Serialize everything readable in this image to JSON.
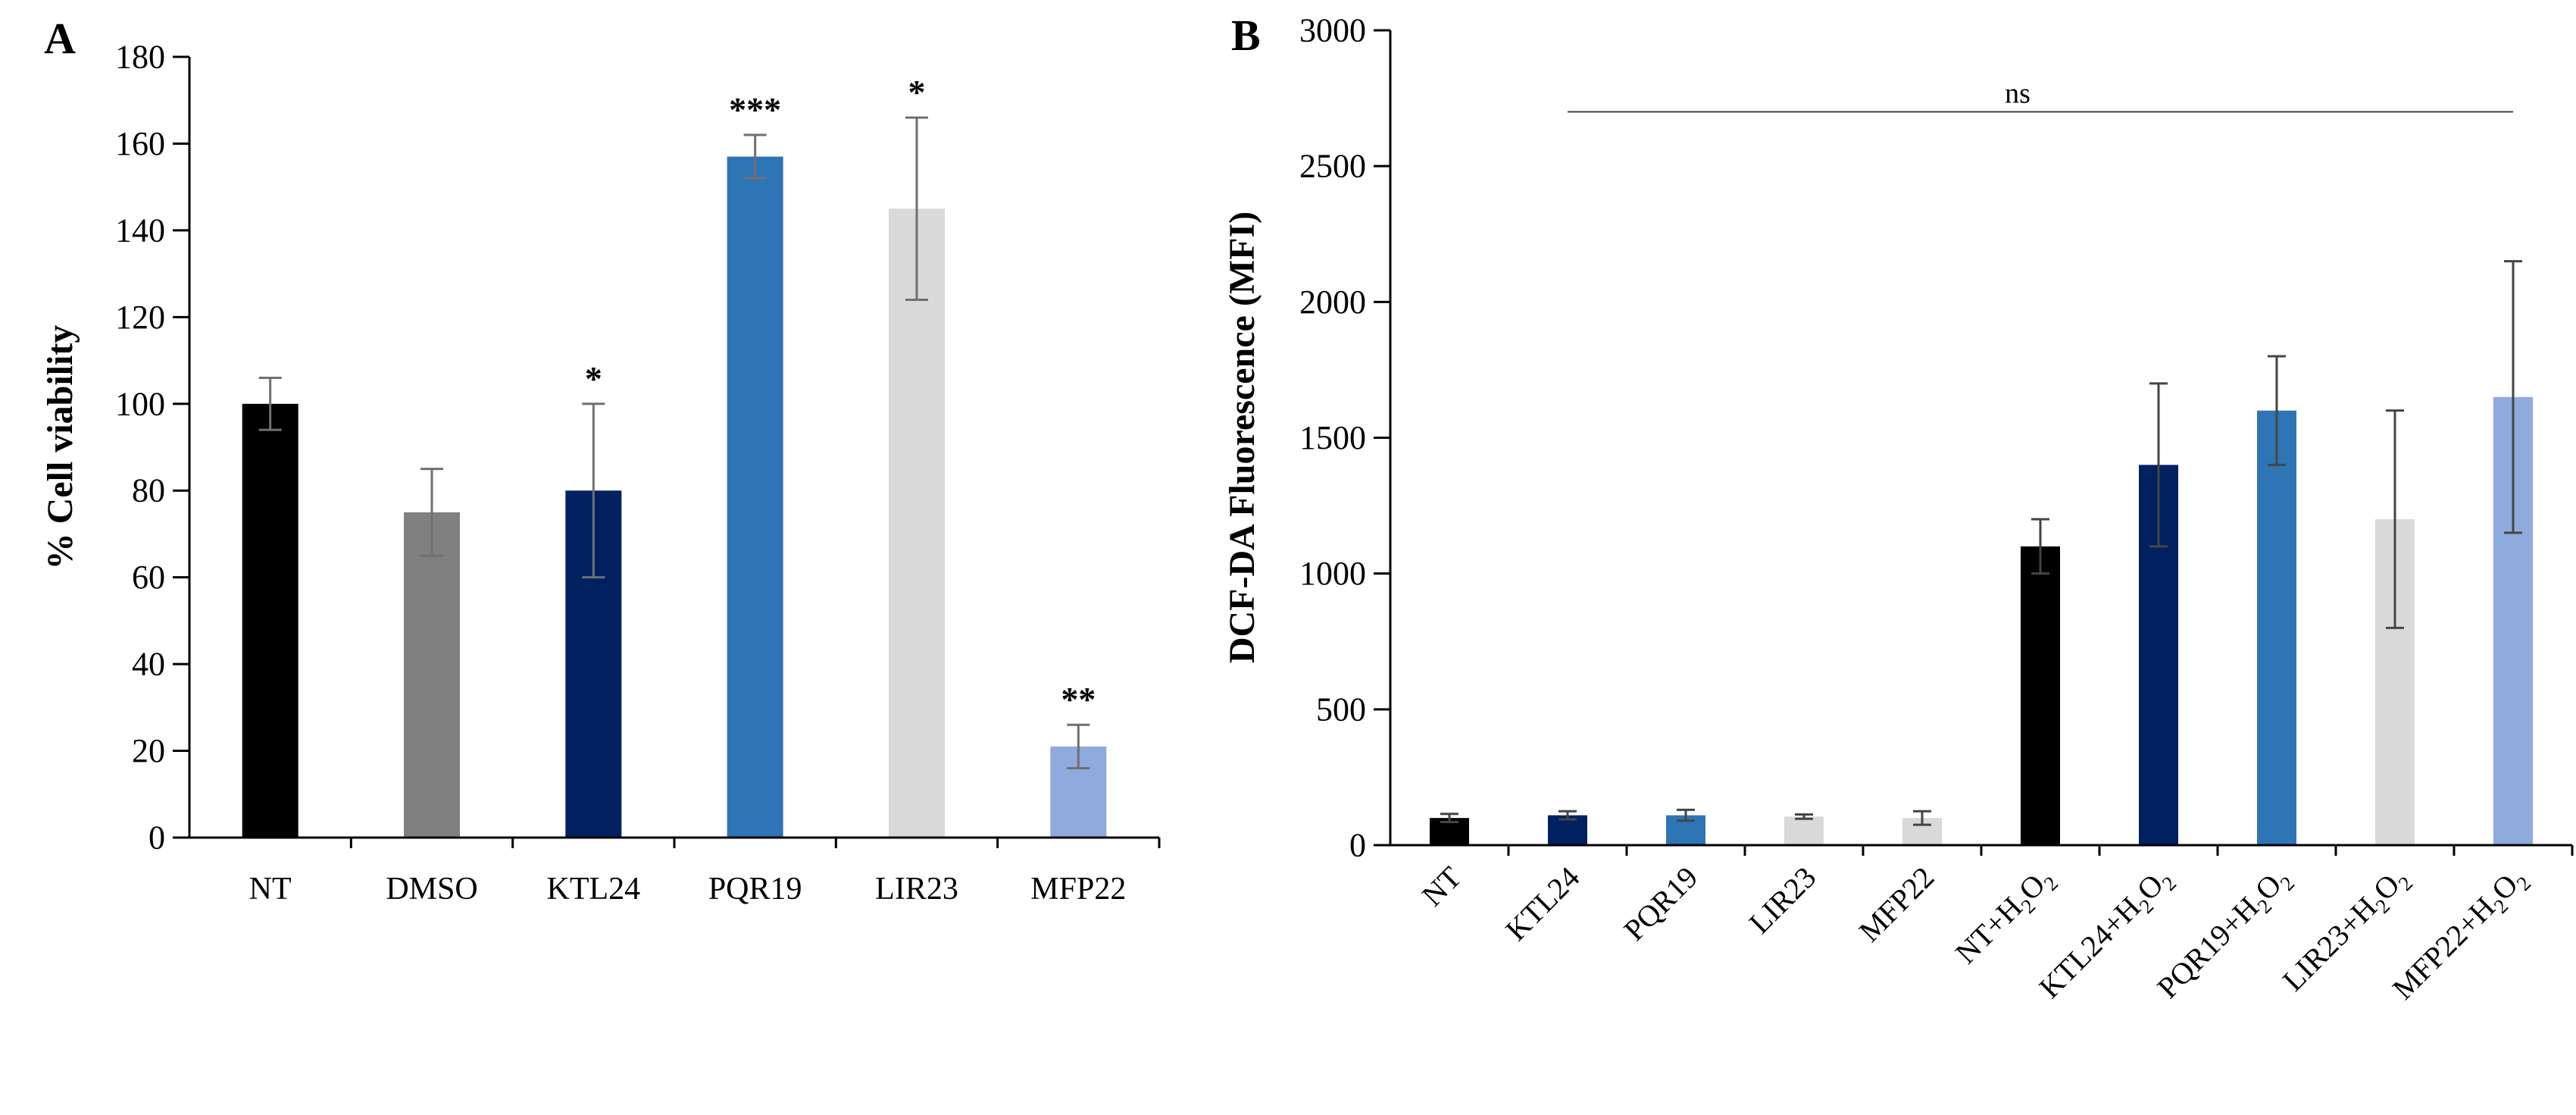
{
  "figure": {
    "background": "#ffffff",
    "panel_a_letter": "A",
    "panel_b_letter": "B"
  },
  "chart_data": [
    {
      "type": "bar",
      "title": "",
      "xlabel": "",
      "ylabel": "% Cell viability",
      "ylim": [
        0,
        180
      ],
      "ytick_step": 20,
      "grid": "off",
      "legend": "none",
      "categories": [
        "NT",
        "DMSO",
        "KTL24",
        "PQR19",
        "LIR23",
        "MFP22"
      ],
      "values": [
        100,
        75,
        80,
        157,
        145,
        21
      ],
      "errors_plus": [
        6,
        10,
        20,
        5,
        21,
        5
      ],
      "errors_minus": [
        6,
        10,
        20,
        5,
        21,
        5
      ],
      "significance": [
        "",
        "",
        "*",
        "***",
        "*",
        "**"
      ],
      "bar_colors": [
        "#000000",
        "#808080",
        "#002060",
        "#2E75B6",
        "#D9D9D9",
        "#8FAADC"
      ],
      "error_bar_color": "#707070"
    },
    {
      "type": "bar",
      "title": "",
      "xlabel": "",
      "ylabel": "DCF-DA Fluorescence (MFI)",
      "ylim": [
        0,
        3000
      ],
      "ytick_step": 500,
      "grid": "off",
      "legend": "none",
      "categories": [
        "NT",
        "KTL24",
        "PQR19",
        "LIR23",
        "MFP22",
        "NT+H2O2",
        "KTL24+H2O2",
        "PQR19+H2O2",
        "LIR23+H2O2",
        "MFP22+H2O2"
      ],
      "values": [
        100,
        110,
        110,
        105,
        100,
        1100,
        1400,
        1600,
        1200,
        1650
      ],
      "errors_plus": [
        15,
        15,
        20,
        8,
        25,
        100,
        300,
        200,
        400,
        500
      ],
      "errors_minus": [
        15,
        15,
        20,
        8,
        25,
        100,
        300,
        200,
        400,
        500
      ],
      "significance": [
        "",
        "",
        "",
        "",
        "",
        "",
        "",
        "",
        "",
        ""
      ],
      "bar_colors": [
        "#000000",
        "#002060",
        "#2E75B6",
        "#D9D9D9",
        "#D9D9D9",
        "#000000",
        "#002060",
        "#2E75B6",
        "#D9D9D9",
        "#8FAADC"
      ],
      "error_bar_color": "#454545",
      "annotation_bracket": {
        "label": "ns",
        "value": 2700,
        "from_category": "KTL24",
        "to_category": "MFP22+H2O2",
        "line_color": "#404040"
      }
    }
  ]
}
